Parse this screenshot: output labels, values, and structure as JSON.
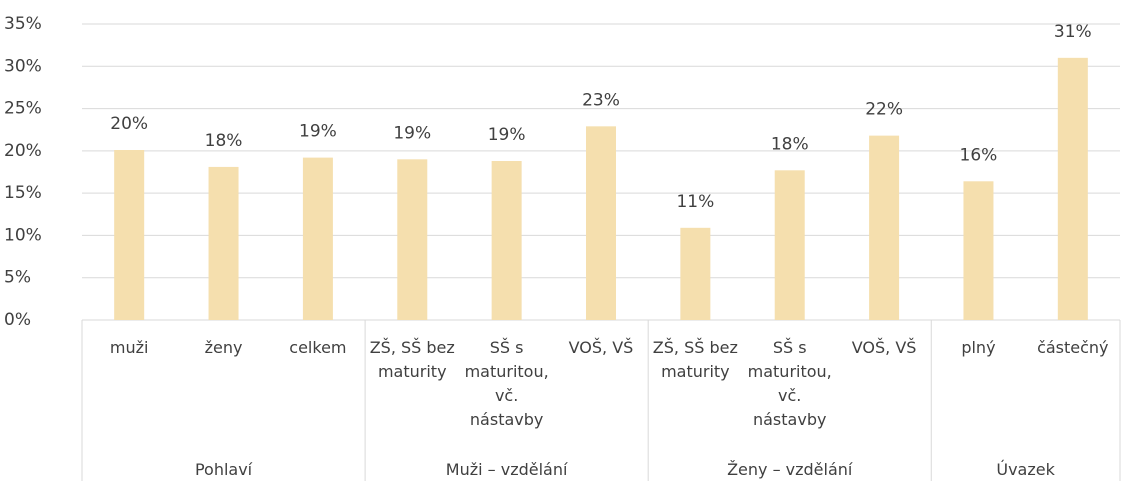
{
  "chart_data": {
    "type": "bar",
    "color": "#f5dfae",
    "grid": true,
    "ylim": [
      0,
      35
    ],
    "yticks": [
      {
        "value": 0,
        "label": "0%"
      },
      {
        "value": 5,
        "label": "5%"
      },
      {
        "value": 10,
        "label": "10%"
      },
      {
        "value": 15,
        "label": "15%"
      },
      {
        "value": 20,
        "label": "20%"
      },
      {
        "value": 25,
        "label": "25%"
      },
      {
        "value": 30,
        "label": "30%"
      },
      {
        "value": 35,
        "label": "35%"
      }
    ],
    "groups": [
      {
        "name": "Pohlaví",
        "categories": [
          "muži",
          "ženy",
          "celkem"
        ],
        "values": [
          20.1,
          18.1,
          19.2
        ],
        "value_labels": [
          "20%",
          "18%",
          "19%"
        ]
      },
      {
        "name": "Muži – vzdělání",
        "categories": [
          "ZŠ, SŠ bez maturity",
          "SŠ s maturitou, vč. nástavby",
          "VOŠ, VŠ"
        ],
        "values": [
          19.0,
          18.8,
          22.9
        ],
        "value_labels": [
          "19%",
          "19%",
          "23%"
        ]
      },
      {
        "name": "Ženy – vzdělání",
        "categories": [
          "ZŠ, SŠ bez maturity",
          "SŠ s maturitou, vč. nástavby",
          "VOŠ, VŠ"
        ],
        "values": [
          10.9,
          17.7,
          21.8
        ],
        "value_labels": [
          "11%",
          "18%",
          "22%"
        ]
      },
      {
        "name": "Úvazek",
        "categories": [
          "plný",
          "částečný"
        ],
        "values": [
          16.4,
          31.0
        ],
        "value_labels": [
          "16%",
          "31%"
        ]
      }
    ]
  }
}
